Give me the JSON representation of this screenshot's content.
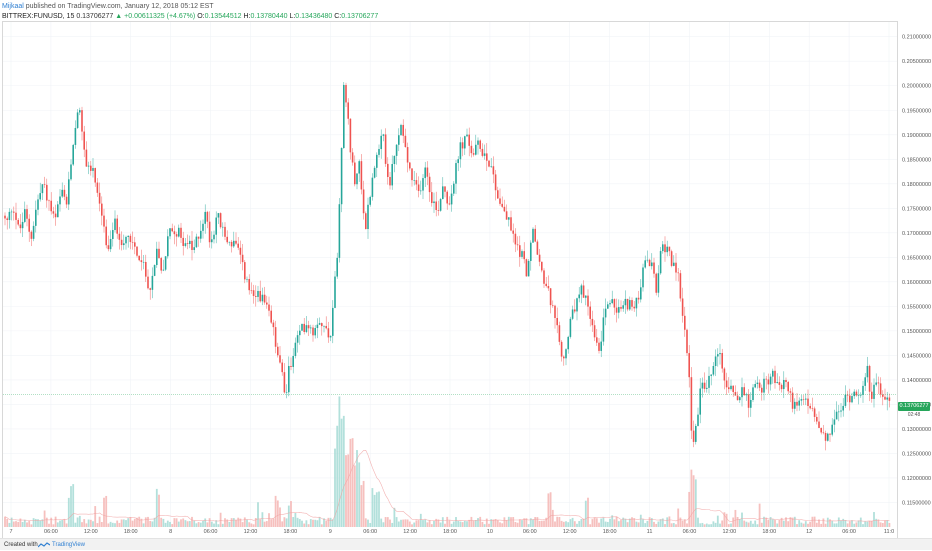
{
  "header": {
    "author": "Mijkaal",
    "published": "published on TradingView.com, January 12, 2018 05:12 EST",
    "symbol": "BITTREX:FUNUSD, 15",
    "last": "0.13706277",
    "change": "+0.00611325 (+4.67%)",
    "open_label": "O:",
    "open": "0.13544512",
    "high_label": "H:",
    "high": "0.13780440",
    "low_label": "L:",
    "low": "0.13436480",
    "close_label": "C:",
    "close": "0.13706277"
  },
  "price_tag": {
    "value": "0.13706277",
    "countdown": "02:48"
  },
  "footer": {
    "created_with": "Created with",
    "brand": "TradingView"
  },
  "colors": {
    "up": "#26a69a",
    "down": "#ef5350",
    "volume_up": "#a5dbd5",
    "volume_down": "#f5b5b3",
    "ma": "#f0a0a0",
    "grid": "#f0f3f7",
    "last_line": "#26a65b"
  },
  "chart_data": {
    "type": "candlestick",
    "title": "BITTREX:FUNUSD, 15",
    "ylim": [
      0.11,
      0.213
    ],
    "y_ticks": [
      "0.21000000",
      "0.20500000",
      "0.20000000",
      "0.19500000",
      "0.19000000",
      "0.18500000",
      "0.18000000",
      "0.17500000",
      "0.17000000",
      "0.16500000",
      "0.16000000",
      "0.15500000",
      "0.15000000",
      "0.14500000",
      "0.14000000",
      "0.13500000",
      "0.13000000",
      "0.12500000",
      "0.12000000",
      "0.11500000"
    ],
    "x_ticks": [
      "7",
      "06:00",
      "12:00",
      "18:00",
      "8",
      "06:00",
      "12:00",
      "18:00",
      "9",
      "06:00",
      "12:00",
      "18:00",
      "10",
      "06:00",
      "12:00",
      "18:00",
      "11",
      "06:00",
      "12:00",
      "18:00",
      "12",
      "06:00",
      "11:0"
    ],
    "price_path": [
      [
        0,
        0.1735
      ],
      [
        6,
        0.172
      ],
      [
        12,
        0.176
      ],
      [
        18,
        0.17
      ],
      [
        24,
        0.174
      ],
      [
        30,
        0.169
      ],
      [
        36,
        0.176
      ],
      [
        42,
        0.18
      ],
      [
        48,
        0.176
      ],
      [
        54,
        0.172
      ],
      [
        60,
        0.178
      ],
      [
        66,
        0.176
      ],
      [
        72,
        0.188
      ],
      [
        78,
        0.195
      ],
      [
        84,
        0.185
      ],
      [
        90,
        0.183
      ],
      [
        96,
        0.18
      ],
      [
        102,
        0.172
      ],
      [
        108,
        0.166
      ],
      [
        114,
        0.172
      ],
      [
        120,
        0.168
      ],
      [
        126,
        0.17
      ],
      [
        132,
        0.168
      ],
      [
        138,
        0.165
      ],
      [
        144,
        0.162
      ],
      [
        150,
        0.158
      ],
      [
        156,
        0.166
      ],
      [
        162,
        0.162
      ],
      [
        168,
        0.17
      ],
      [
        174,
        0.171
      ],
      [
        180,
        0.169
      ],
      [
        186,
        0.168
      ],
      [
        192,
        0.166
      ],
      [
        198,
        0.17
      ],
      [
        204,
        0.174
      ],
      [
        210,
        0.168
      ],
      [
        216,
        0.174
      ],
      [
        222,
        0.17
      ],
      [
        228,
        0.168
      ],
      [
        234,
        0.168
      ],
      [
        240,
        0.164
      ],
      [
        246,
        0.16
      ],
      [
        252,
        0.156
      ],
      [
        258,
        0.158
      ],
      [
        264,
        0.155
      ],
      [
        270,
        0.152
      ],
      [
        276,
        0.146
      ],
      [
        282,
        0.14
      ],
      [
        285,
        0.135
      ],
      [
        288,
        0.142
      ],
      [
        294,
        0.147
      ],
      [
        300,
        0.15
      ],
      [
        306,
        0.152
      ],
      [
        312,
        0.15
      ],
      [
        318,
        0.153
      ],
      [
        324,
        0.15
      ],
      [
        330,
        0.15
      ],
      [
        336,
        0.165
      ],
      [
        340,
        0.185
      ],
      [
        343,
        0.2
      ],
      [
        346,
        0.195
      ],
      [
        350,
        0.185
      ],
      [
        354,
        0.18
      ],
      [
        358,
        0.186
      ],
      [
        364,
        0.17
      ],
      [
        370,
        0.18
      ],
      [
        376,
        0.185
      ],
      [
        382,
        0.19
      ],
      [
        388,
        0.179
      ],
      [
        394,
        0.186
      ],
      [
        400,
        0.192
      ],
      [
        406,
        0.185
      ],
      [
        412,
        0.18
      ],
      [
        418,
        0.178
      ],
      [
        424,
        0.184
      ],
      [
        430,
        0.178
      ],
      [
        436,
        0.174
      ],
      [
        442,
        0.18
      ],
      [
        448,
        0.176
      ],
      [
        454,
        0.182
      ],
      [
        460,
        0.188
      ],
      [
        466,
        0.189
      ],
      [
        472,
        0.186
      ],
      [
        478,
        0.188
      ],
      [
        484,
        0.186
      ],
      [
        490,
        0.184
      ],
      [
        496,
        0.178
      ],
      [
        502,
        0.175
      ],
      [
        508,
        0.172
      ],
      [
        514,
        0.168
      ],
      [
        520,
        0.166
      ],
      [
        526,
        0.162
      ],
      [
        532,
        0.17
      ],
      [
        538,
        0.164
      ],
      [
        544,
        0.16
      ],
      [
        550,
        0.156
      ],
      [
        556,
        0.15
      ],
      [
        562,
        0.143
      ],
      [
        568,
        0.15
      ],
      [
        574,
        0.155
      ],
      [
        580,
        0.158
      ],
      [
        586,
        0.156
      ],
      [
        592,
        0.15
      ],
      [
        598,
        0.145
      ],
      [
        604,
        0.155
      ],
      [
        610,
        0.156
      ],
      [
        616,
        0.154
      ],
      [
        622,
        0.155
      ],
      [
        628,
        0.156
      ],
      [
        634,
        0.154
      ],
      [
        640,
        0.16
      ],
      [
        646,
        0.165
      ],
      [
        652,
        0.162
      ],
      [
        656,
        0.158
      ],
      [
        660,
        0.166
      ],
      [
        666,
        0.168
      ],
      [
        672,
        0.163
      ],
      [
        678,
        0.16
      ],
      [
        684,
        0.15
      ],
      [
        688,
        0.14
      ],
      [
        692,
        0.125
      ],
      [
        696,
        0.132
      ],
      [
        700,
        0.14
      ],
      [
        706,
        0.138
      ],
      [
        712,
        0.143
      ],
      [
        718,
        0.145
      ],
      [
        724,
        0.14
      ],
      [
        730,
        0.138
      ],
      [
        736,
        0.135
      ],
      [
        742,
        0.139
      ],
      [
        748,
        0.135
      ],
      [
        754,
        0.14
      ],
      [
        760,
        0.138
      ],
      [
        766,
        0.14
      ],
      [
        772,
        0.141
      ],
      [
        778,
        0.138
      ],
      [
        784,
        0.14
      ],
      [
        790,
        0.136
      ],
      [
        796,
        0.134
      ],
      [
        802,
        0.136
      ],
      [
        808,
        0.135
      ],
      [
        814,
        0.132
      ],
      [
        820,
        0.129
      ],
      [
        826,
        0.127
      ],
      [
        832,
        0.132
      ],
      [
        838,
        0.133
      ],
      [
        844,
        0.136
      ],
      [
        850,
        0.137
      ],
      [
        856,
        0.138
      ],
      [
        862,
        0.138
      ],
      [
        866,
        0.142
      ],
      [
        870,
        0.137
      ],
      [
        876,
        0.139
      ],
      [
        882,
        0.136
      ],
      [
        888,
        0.137
      ]
    ],
    "volume_spikes": [
      [
        68,
        0.25
      ],
      [
        72,
        0.32
      ],
      [
        104,
        0.22
      ],
      [
        156,
        0.3
      ],
      [
        276,
        0.25
      ],
      [
        288,
        0.2
      ],
      [
        336,
        0.75
      ],
      [
        338,
        0.95
      ],
      [
        340,
        1.0
      ],
      [
        342,
        0.8
      ],
      [
        346,
        0.6
      ],
      [
        350,
        0.7
      ],
      [
        354,
        0.55
      ],
      [
        358,
        0.5
      ],
      [
        362,
        0.4
      ],
      [
        372,
        0.3
      ],
      [
        376,
        0.25
      ],
      [
        548,
        0.25
      ],
      [
        586,
        0.22
      ],
      [
        690,
        0.3
      ],
      [
        692,
        0.45
      ],
      [
        694,
        0.35
      ]
    ]
  }
}
